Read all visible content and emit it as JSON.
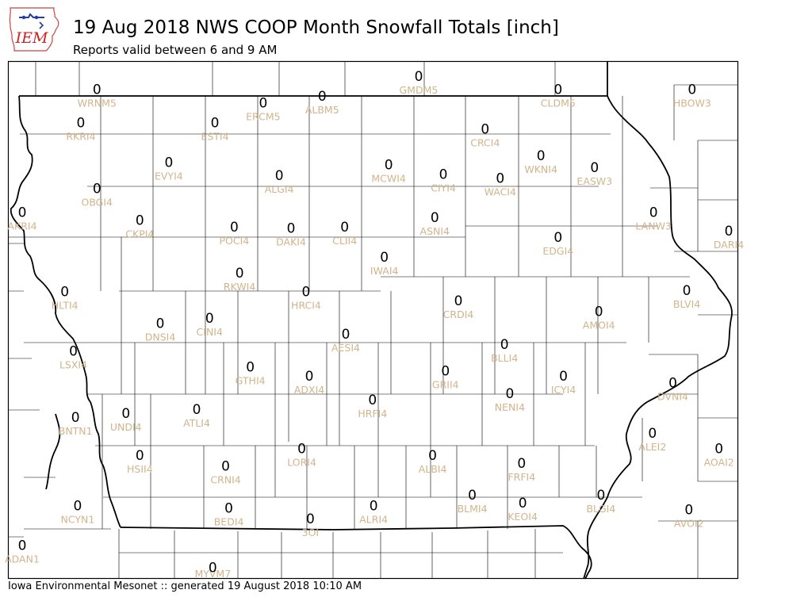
{
  "logo": {
    "text": "IEM"
  },
  "header": {
    "title": "19 Aug 2018 NWS COOP Month Snowfall Totals [inch]",
    "subtitle": "Reports valid between 6 and 9 AM"
  },
  "footer": {
    "text": "Iowa Environmental Mesonet :: generated 19 August 2018 10:10 AM"
  },
  "colors": {
    "station_label": "#d2b48c",
    "value": "#000000",
    "county_line": "#000000"
  },
  "stations": [
    {
      "id": "WRNM5",
      "value": "0",
      "lon": -95.95,
      "lat": 43.55
    },
    {
      "id": "ERCM5",
      "value": "0",
      "lon": -94.4,
      "lat": 43.45
    },
    {
      "id": "ALBM5",
      "value": "0",
      "lon": -93.85,
      "lat": 43.5
    },
    {
      "id": "GMDM5",
      "value": "0",
      "lon": -92.95,
      "lat": 43.65
    },
    {
      "id": "CLDM5",
      "value": "0",
      "lon": -91.65,
      "lat": 43.55
    },
    {
      "id": "HBOW3",
      "value": "0",
      "lon": -90.4,
      "lat": 43.55
    },
    {
      "id": "RKRI4",
      "value": "0",
      "lon": -96.1,
      "lat": 43.3
    },
    {
      "id": "ESTI4",
      "value": "0",
      "lon": -94.85,
      "lat": 43.3
    },
    {
      "id": "CRCI4",
      "value": "0",
      "lon": -92.33,
      "lat": 43.25
    },
    {
      "id": "WKNI4",
      "value": "0",
      "lon": -91.81,
      "lat": 43.05
    },
    {
      "id": "EASW3",
      "value": "0",
      "lon": -91.31,
      "lat": 42.96
    },
    {
      "id": "EVYI4",
      "value": "0",
      "lon": -95.28,
      "lat": 43.0
    },
    {
      "id": "ALGI4",
      "value": "0",
      "lon": -94.25,
      "lat": 42.9
    },
    {
      "id": "MCWI4",
      "value": "0",
      "lon": -93.23,
      "lat": 42.98
    },
    {
      "id": "CIYI4",
      "value": "0",
      "lon": -92.72,
      "lat": 42.91
    },
    {
      "id": "WACI4",
      "value": "0",
      "lon": -92.19,
      "lat": 42.88
    },
    {
      "id": "OBGI4",
      "value": "0",
      "lon": -95.95,
      "lat": 42.8
    },
    {
      "id": "AKRI4",
      "value": "0",
      "lon": -96.66,
      "lat": 42.62
    },
    {
      "id": "LANW3",
      "value": "0",
      "lon": -90.76,
      "lat": 42.62
    },
    {
      "id": "CKPI4",
      "value": "0",
      "lon": -95.55,
      "lat": 42.56
    },
    {
      "id": "POCI4",
      "value": "0",
      "lon": -94.67,
      "lat": 42.51
    },
    {
      "id": "DAKI4",
      "value": "0",
      "lon": -94.14,
      "lat": 42.5
    },
    {
      "id": "CLII4",
      "value": "0",
      "lon": -93.64,
      "lat": 42.51
    },
    {
      "id": "ASNI4",
      "value": "0",
      "lon": -92.8,
      "lat": 42.58
    },
    {
      "id": "EDGI4",
      "value": "0",
      "lon": -91.65,
      "lat": 42.43
    },
    {
      "id": "DARI4",
      "value": "0",
      "lon": -90.0,
      "lat": 42.48
    },
    {
      "id": "IWAI4",
      "value": "0",
      "lon": -93.27,
      "lat": 42.28
    },
    {
      "id": "RKWI4",
      "value": "0",
      "lon": -94.62,
      "lat": 42.16
    },
    {
      "id": "HLTI4",
      "value": "0",
      "lon": -96.25,
      "lat": 42.02
    },
    {
      "id": "HRCI4",
      "value": "0",
      "lon": -94.0,
      "lat": 42.02
    },
    {
      "id": "CRDI4",
      "value": "0",
      "lon": -92.58,
      "lat": 41.95
    },
    {
      "id": "BLVI4",
      "value": "0",
      "lon": -90.45,
      "lat": 42.03
    },
    {
      "id": "AMOI4",
      "value": "0",
      "lon": -91.27,
      "lat": 41.87
    },
    {
      "id": "DNSI4",
      "value": "0",
      "lon": -95.36,
      "lat": 41.78
    },
    {
      "id": "CINI4",
      "value": "0",
      "lon": -94.9,
      "lat": 41.82
    },
    {
      "id": "AESI4",
      "value": "0",
      "lon": -93.63,
      "lat": 41.7
    },
    {
      "id": "BLLI4",
      "value": "0",
      "lon": -92.15,
      "lat": 41.62
    },
    {
      "id": "LSXI4",
      "value": "0",
      "lon": -96.17,
      "lat": 41.57
    },
    {
      "id": "GTHI4",
      "value": "0",
      "lon": -94.52,
      "lat": 41.45
    },
    {
      "id": "ADXI4",
      "value": "0",
      "lon": -93.97,
      "lat": 41.38
    },
    {
      "id": "GRII4",
      "value": "0",
      "lon": -92.7,
      "lat": 41.42
    },
    {
      "id": "ICYI4",
      "value": "0",
      "lon": -91.6,
      "lat": 41.38
    },
    {
      "id": "DVNI4",
      "value": "0",
      "lon": -90.58,
      "lat": 41.33
    },
    {
      "id": "HRFI4",
      "value": "0",
      "lon": -93.38,
      "lat": 41.2
    },
    {
      "id": "NENI4",
      "value": "0",
      "lon": -92.1,
      "lat": 41.25
    },
    {
      "id": "ATLI4",
      "value": "0",
      "lon": -95.02,
      "lat": 41.13
    },
    {
      "id": "UNDI4",
      "value": "0",
      "lon": -95.68,
      "lat": 41.1
    },
    {
      "id": "BNTN1",
      "value": "0",
      "lon": -96.15,
      "lat": 41.07
    },
    {
      "id": "ALEI2",
      "value": "0",
      "lon": -90.77,
      "lat": 40.95
    },
    {
      "id": "AOAI2",
      "value": "0",
      "lon": -90.15,
      "lat": 40.83
    },
    {
      "id": "HSII4",
      "value": "0",
      "lon": -95.55,
      "lat": 40.78
    },
    {
      "id": "CRNI4",
      "value": "0",
      "lon": -94.75,
      "lat": 40.7
    },
    {
      "id": "LORI4",
      "value": "0",
      "lon": -94.04,
      "lat": 40.83
    },
    {
      "id": "ALBI4",
      "value": "0",
      "lon": -92.82,
      "lat": 40.78
    },
    {
      "id": "FRFI4",
      "value": "0",
      "lon": -91.99,
      "lat": 40.72
    },
    {
      "id": "BLGI4",
      "value": "0",
      "lon": -91.25,
      "lat": 40.48
    },
    {
      "id": "NCYN1",
      "value": "0",
      "lon": -96.13,
      "lat": 40.4
    },
    {
      "id": "BEDI4",
      "value": "0",
      "lon": -94.72,
      "lat": 40.38
    },
    {
      "id": "ALRI4",
      "value": "0",
      "lon": -93.37,
      "lat": 40.4
    },
    {
      "id": "BLMI4",
      "value": "0",
      "lon": -92.45,
      "lat": 40.48
    },
    {
      "id": "KEOI4",
      "value": "0",
      "lon": -91.98,
      "lat": 40.42
    },
    {
      "id": "AVOI2",
      "value": "0",
      "lon": -90.43,
      "lat": 40.37
    },
    {
      "id": "3OI",
      "value": "0",
      "lon": -93.96,
      "lat": 40.3
    },
    {
      "id": "ADAN1",
      "value": "0",
      "lon": -96.68,
      "lat": 40.1
    },
    {
      "id": "MYVM7",
      "value": "0",
      "lon": -94.87,
      "lat": 39.93
    }
  ]
}
